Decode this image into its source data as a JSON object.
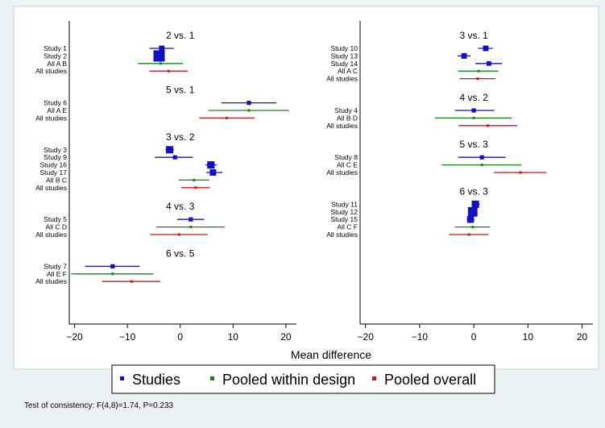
{
  "chart_data": {
    "type": "forest",
    "xlabel": "Mean difference",
    "xticks": [
      -20,
      -10,
      0,
      10,
      20
    ],
    "xlim": [
      -21,
      22
    ],
    "legend": {
      "placement": "bottom",
      "entries": [
        {
          "label": "Studies",
          "color": "#1010c8"
        },
        {
          "label": "Pooled within design",
          "color": "#118811"
        },
        {
          "label": "Pooled overall",
          "color": "#d01414"
        }
      ]
    },
    "footnote": "Test of consistency: F(4,8)=1.74, P=0.233",
    "panels": [
      {
        "groups": [
          {
            "title": "2 vs. 1",
            "rows": [
              {
                "label": "Study 1",
                "kind": "study",
                "est": -3.5,
                "lo": -5.8,
                "hi": -1.2,
                "weight": 0.35
              },
              {
                "label": "Study 2",
                "kind": "study",
                "est": -4.0,
                "lo": -5.0,
                "hi": -3.0,
                "weight": 1.0
              },
              {
                "label": "All A B",
                "kind": "design",
                "est": -3.7,
                "lo": -8.0,
                "hi": 0.5
              },
              {
                "label": "All studies",
                "kind": "overall",
                "est": -2.2,
                "lo": -5.8,
                "hi": 1.4
              }
            ]
          },
          {
            "title": "5 vs. 1",
            "rows": [
              {
                "label": "Study 6",
                "kind": "study",
                "est": 13.0,
                "lo": 7.8,
                "hi": 18.2,
                "weight": 0.2
              },
              {
                "label": "All A E",
                "kind": "design",
                "est": 13.0,
                "lo": 5.3,
                "hi": 20.6
              },
              {
                "label": "All studies",
                "kind": "overall",
                "est": 8.8,
                "lo": 3.6,
                "hi": 14.1
              }
            ]
          },
          {
            "title": "3 vs. 2",
            "rows": [
              {
                "label": "Study 3",
                "kind": "study",
                "est": -2.0,
                "lo": -2.8,
                "hi": -1.2,
                "weight": 0.55
              },
              {
                "label": "Study 9",
                "kind": "study",
                "est": -1.0,
                "lo": -4.8,
                "hi": 2.4,
                "weight": 0.2
              },
              {
                "label": "Study 16",
                "kind": "study",
                "est": 5.8,
                "lo": 4.8,
                "hi": 6.9,
                "weight": 0.55
              },
              {
                "label": "Study 17",
                "kind": "study",
                "est": 6.2,
                "lo": 4.9,
                "hi": 8.0,
                "weight": 0.45
              },
              {
                "label": "All B C",
                "kind": "design",
                "est": 2.6,
                "lo": -0.3,
                "hi": 5.5
              },
              {
                "label": "All studies",
                "kind": "overall",
                "est": 2.9,
                "lo": 0.2,
                "hi": 5.6
              }
            ]
          },
          {
            "title": "4 vs. 3",
            "rows": [
              {
                "label": "Study 5",
                "kind": "study",
                "est": 2.0,
                "lo": -0.6,
                "hi": 4.5,
                "weight": 0.2
              },
              {
                "label": "All C D",
                "kind": "design",
                "est": 2.0,
                "lo": -4.5,
                "hi": 8.4
              },
              {
                "label": "All studies",
                "kind": "overall",
                "est": -0.2,
                "lo": -5.7,
                "hi": 5.2
              }
            ]
          },
          {
            "title": "6 vs. 5",
            "rows": [
              {
                "label": "Study 7",
                "kind": "study",
                "est": -12.8,
                "lo": -18.0,
                "hi": -7.7,
                "weight": 0.2
              },
              {
                "label": "All E F",
                "kind": "design",
                "est": -12.8,
                "lo": -20.6,
                "hi": -5.1
              },
              {
                "label": "All studies",
                "kind": "overall",
                "est": -9.2,
                "lo": -14.8,
                "hi": -3.8
              }
            ]
          }
        ]
      },
      {
        "groups": [
          {
            "title": "3 vs. 1",
            "rows": [
              {
                "label": "Study 10",
                "kind": "study",
                "est": 2.2,
                "lo": 0.8,
                "hi": 3.5,
                "weight": 0.35
              },
              {
                "label": "Study 13",
                "kind": "study",
                "est": -1.8,
                "lo": -3.0,
                "hi": -0.6,
                "weight": 0.35
              },
              {
                "label": "Study 14",
                "kind": "study",
                "est": 2.8,
                "lo": 0.3,
                "hi": 5.2,
                "weight": 0.25
              },
              {
                "label": "All A C",
                "kind": "design",
                "est": 0.9,
                "lo": -2.9,
                "hi": 4.5
              },
              {
                "label": "All studies",
                "kind": "overall",
                "est": 0.7,
                "lo": -2.6,
                "hi": 4.0
              }
            ]
          },
          {
            "title": "4 vs. 2",
            "rows": [
              {
                "label": "Study 4",
                "kind": "study",
                "est": 0.0,
                "lo": -3.5,
                "hi": 3.8,
                "weight": 0.2
              },
              {
                "label": "All B D",
                "kind": "design",
                "est": 0.0,
                "lo": -7.2,
                "hi": 7.0
              },
              {
                "label": "All studies",
                "kind": "overall",
                "est": 2.6,
                "lo": -2.8,
                "hi": 8.0
              }
            ]
          },
          {
            "title": "5 vs. 3",
            "rows": [
              {
                "label": "Study 8",
                "kind": "study",
                "est": 1.5,
                "lo": -2.9,
                "hi": 5.9,
                "weight": 0.2
              },
              {
                "label": "All C E",
                "kind": "design",
                "est": 1.5,
                "lo": -5.9,
                "hi": 8.8
              },
              {
                "label": "All studies",
                "kind": "overall",
                "est": 8.6,
                "lo": 3.7,
                "hi": 13.4
              }
            ]
          },
          {
            "title": "6 vs. 3",
            "rows": [
              {
                "label": "Study 11",
                "kind": "study",
                "est": 0.3,
                "lo": -0.4,
                "hi": 1.1,
                "weight": 0.55
              },
              {
                "label": "Study 12",
                "kind": "study",
                "est": -0.2,
                "lo": -0.6,
                "hi": 0.2,
                "weight": 0.8
              },
              {
                "label": "Study 15",
                "kind": "study",
                "est": -0.6,
                "lo": -1.3,
                "hi": 0.1,
                "weight": 0.5
              },
              {
                "label": "All C F",
                "kind": "design",
                "est": -0.2,
                "lo": -3.5,
                "hi": 3.0
              },
              {
                "label": "All studies",
                "kind": "overall",
                "est": -0.9,
                "lo": -4.6,
                "hi": 2.7
              }
            ]
          }
        ]
      }
    ]
  }
}
